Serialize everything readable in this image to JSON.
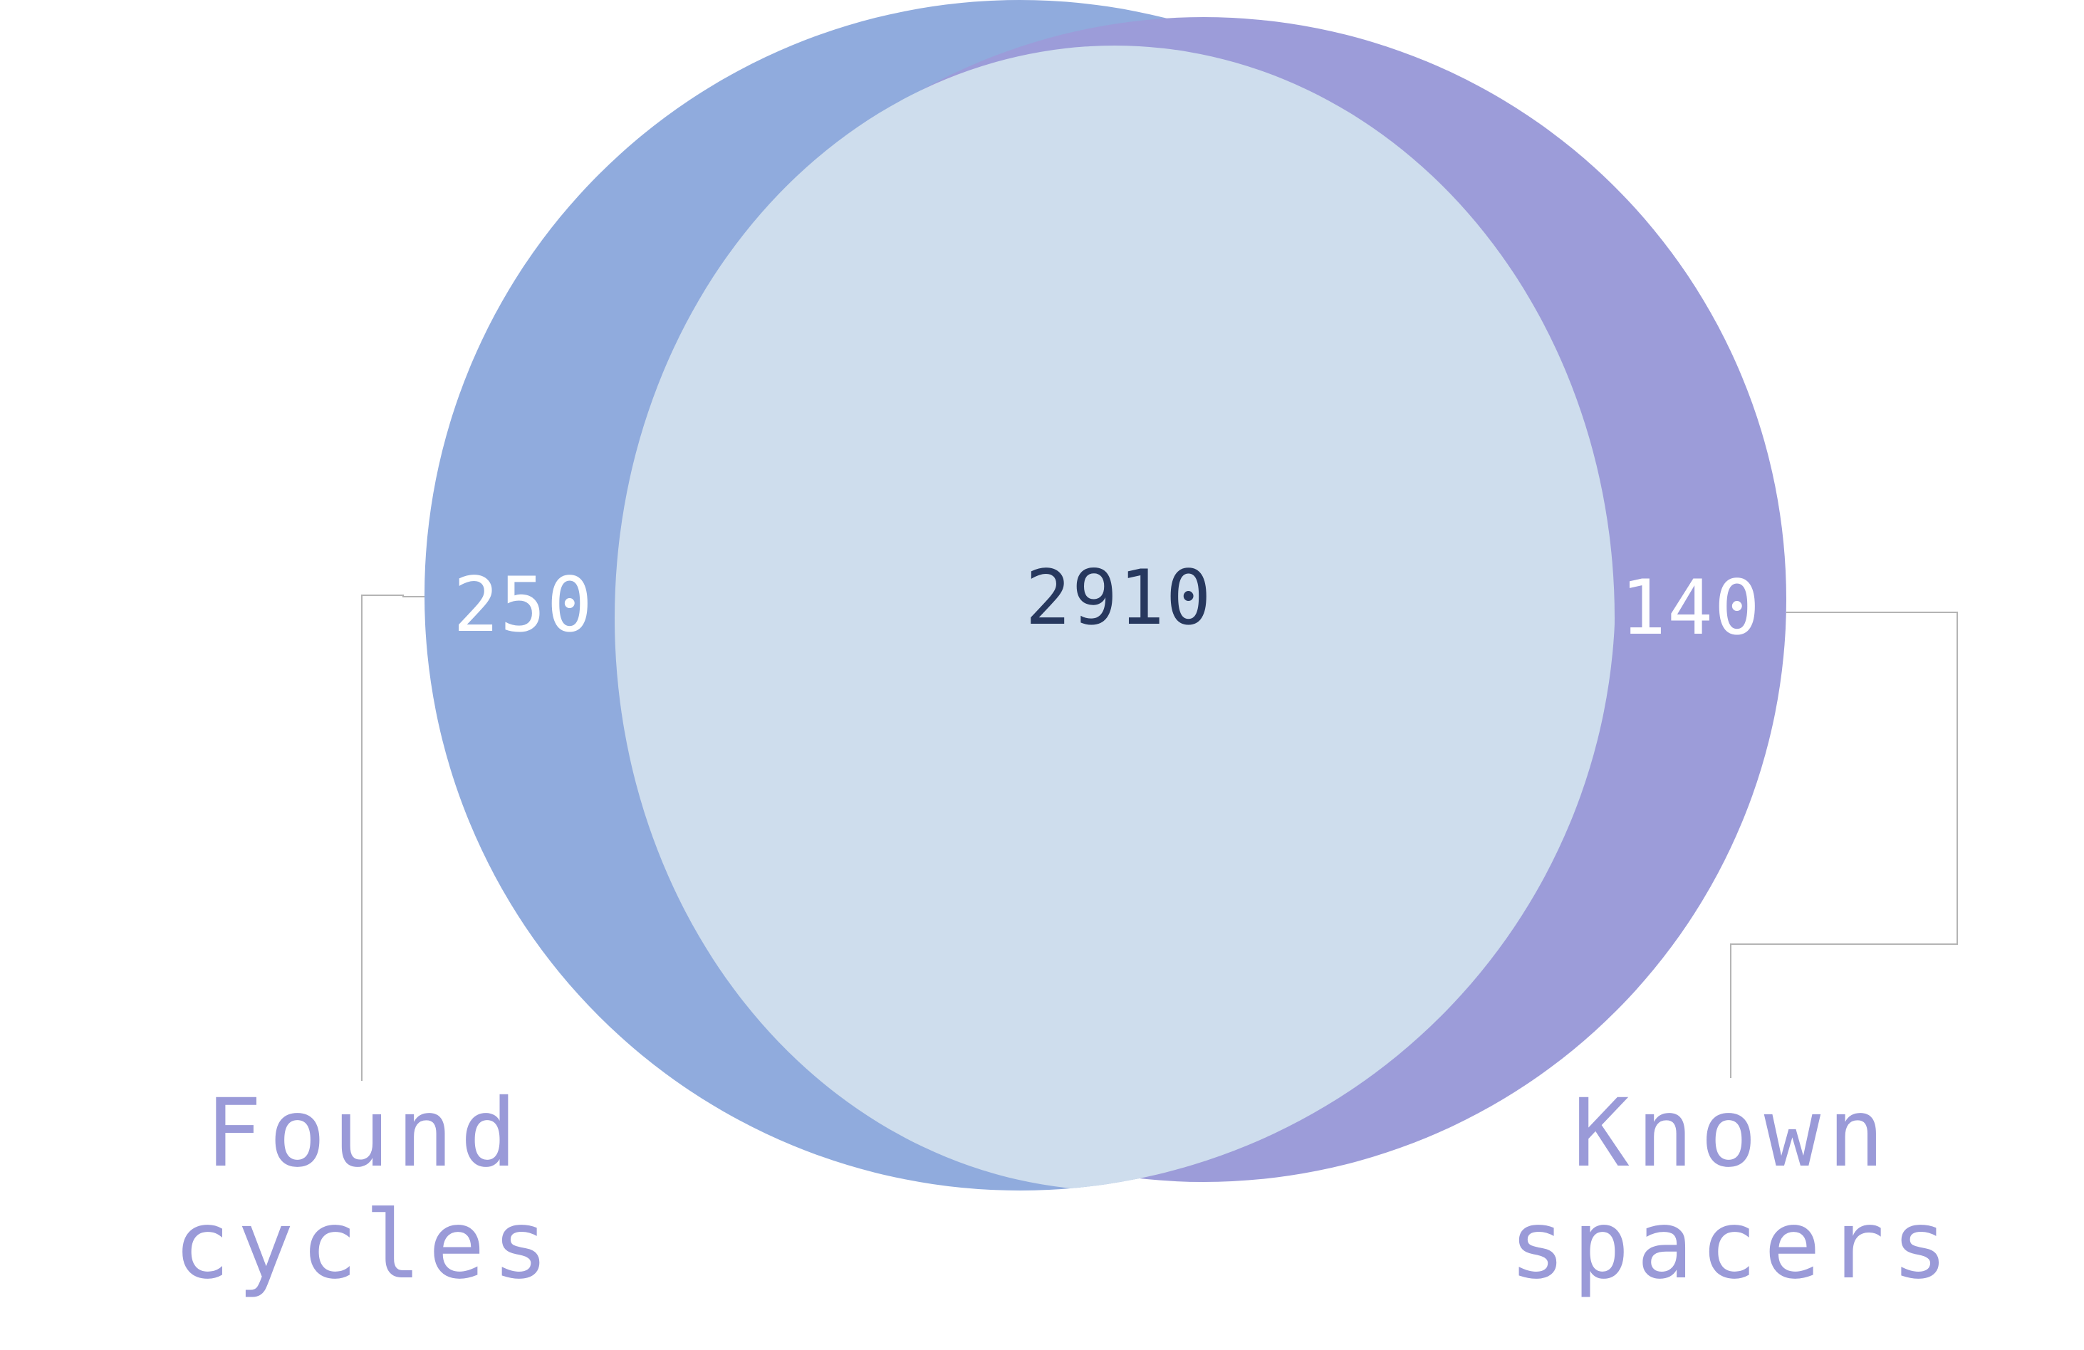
{
  "diagram": {
    "type": "venn",
    "sets": [
      {
        "name_line1": "Found",
        "name_line2": "cycles",
        "only_count": "250",
        "fill": "#90abdd",
        "label_color": "#9a9ad8"
      },
      {
        "name_line1": "Known",
        "name_line2": "spacers",
        "only_count": "140",
        "fill": "#9c9cd9",
        "label_color": "#9a9ad8"
      }
    ],
    "intersection": {
      "count": "2910",
      "fill": "#cedded",
      "text_color": "#27385e"
    },
    "only_count_color": "#ffffff",
    "leader_line_color": "#b4b4b4"
  }
}
